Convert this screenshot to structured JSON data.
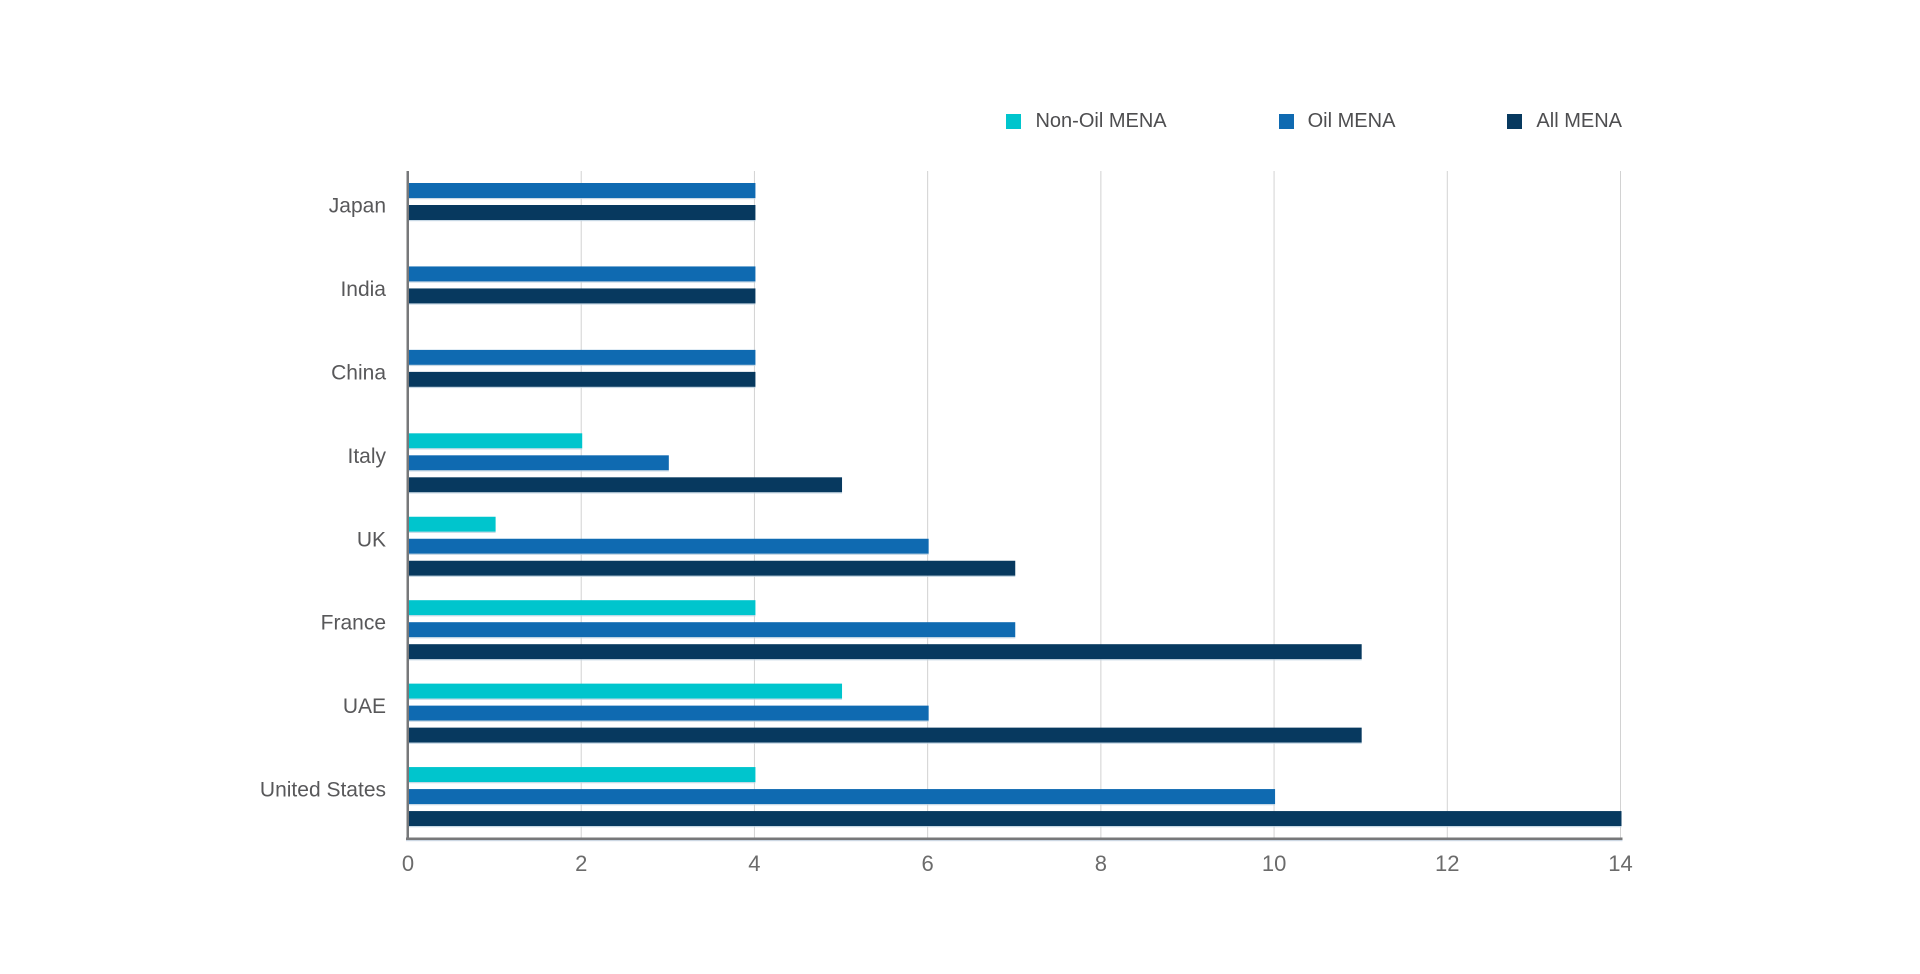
{
  "page": {
    "background": "#ffffff"
  },
  "chart_data": {
    "type": "bar",
    "orientation": "horizontal",
    "categories": [
      "Japan",
      "India",
      "China",
      "Italy",
      "UK",
      "France",
      "UAE",
      "United States"
    ],
    "series": [
      {
        "name": "Non-Oil MENA",
        "color": "#00C5CD",
        "values": [
          null,
          null,
          null,
          2,
          1,
          4,
          5,
          4
        ]
      },
      {
        "name": "Oil MENA",
        "color": "#0F6AB1",
        "values": [
          4,
          4,
          4,
          3,
          6,
          7,
          6,
          10
        ]
      },
      {
        "name": "All MENA",
        "color": "#07395F",
        "values": [
          4,
          4,
          4,
          5,
          7,
          11,
          11,
          14
        ]
      }
    ],
    "title": "",
    "xlabel": "",
    "ylabel": "",
    "xlim": [
      0,
      14
    ],
    "xticks": [
      "0",
      "2",
      "4",
      "6",
      "8",
      "10",
      "12",
      "14"
    ],
    "grid": "vertical",
    "legend_position": "top-right",
    "colors": {
      "gridline": "#d2d2d2",
      "axis_line": "#77787a",
      "axis_underline": "#c6d3e0",
      "bar_underline": "#bdd1e1",
      "tick_label": "#6b6b6b",
      "category_label": "#58585a"
    }
  }
}
